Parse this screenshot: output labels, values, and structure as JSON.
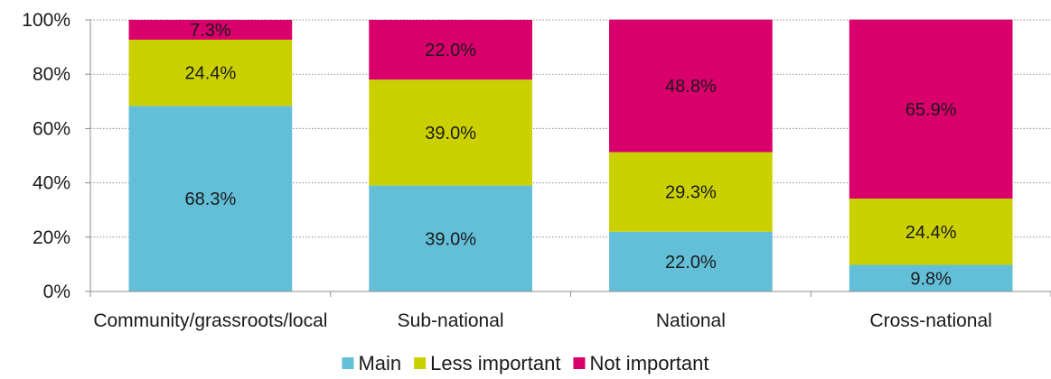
{
  "chart_data": {
    "type": "bar",
    "stacked": true,
    "percent": true,
    "categories": [
      "Community/grassroots/local",
      "Sub-national",
      "National",
      "Cross-national"
    ],
    "series": [
      {
        "name": "Main",
        "color": "#63bfd8",
        "values": [
          68.3,
          39.0,
          22.0,
          9.8
        ],
        "labels": [
          "68.3%",
          "39.0%",
          "22.0%",
          "9.8%"
        ]
      },
      {
        "name": "Less important",
        "color": "#cbd100",
        "values": [
          24.4,
          39.0,
          29.3,
          24.4
        ],
        "labels": [
          "24.4%",
          "39.0%",
          "29.3%",
          "24.4%"
        ]
      },
      {
        "name": "Not important",
        "color": "#d9006c",
        "values": [
          7.3,
          22.0,
          48.8,
          65.9
        ],
        "labels": [
          "7.3%",
          "22.0%",
          "48.8%",
          "65.9%"
        ]
      }
    ],
    "yticks": [
      0,
      20,
      40,
      60,
      80,
      100
    ],
    "ytick_labels": [
      "0%",
      "20%",
      "40%",
      "60%",
      "80%",
      "100%"
    ],
    "ylim": [
      0,
      100
    ],
    "grid": true,
    "legend_position": "bottom",
    "title": "",
    "xlabel": "",
    "ylabel": ""
  }
}
